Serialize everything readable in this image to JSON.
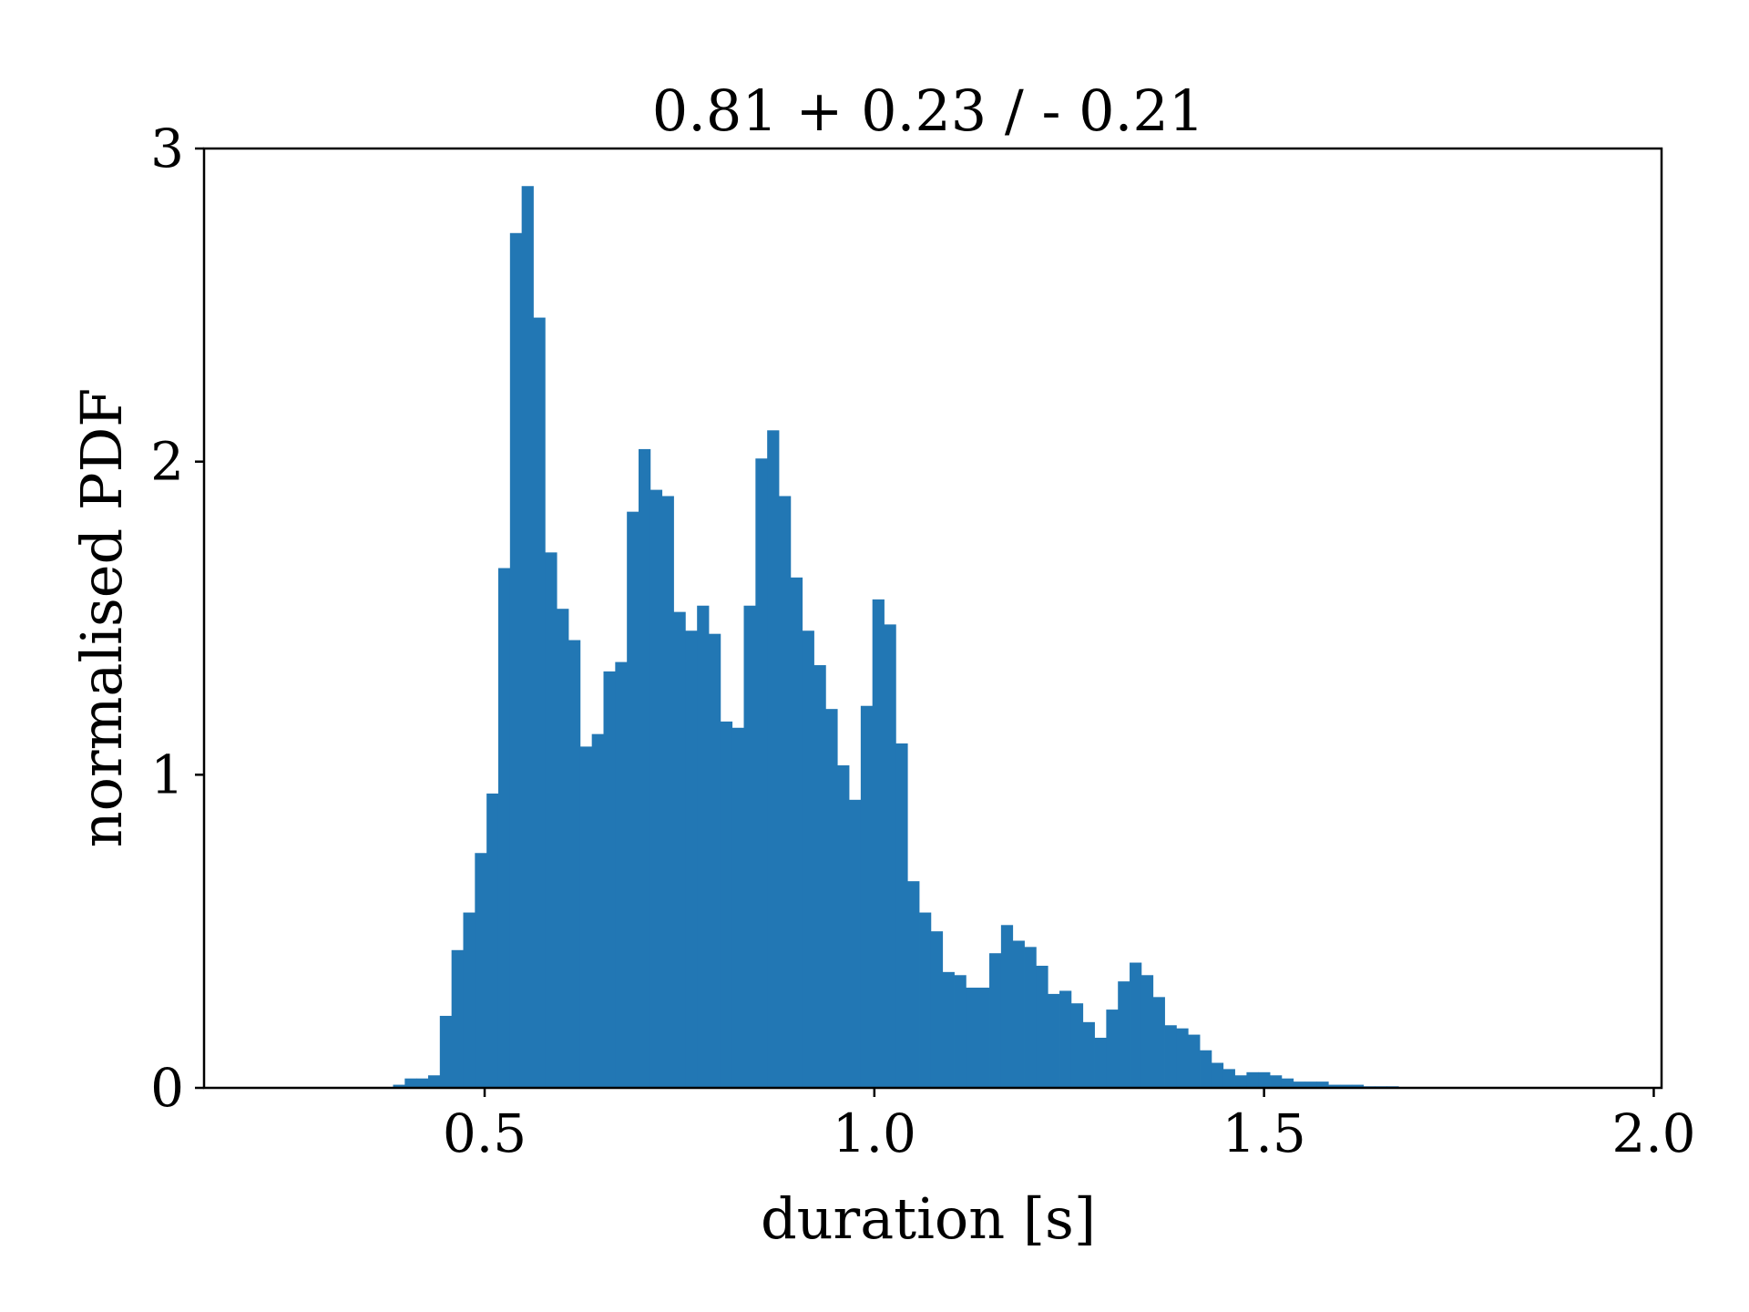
{
  "chart_data": {
    "type": "bar",
    "title": "0.81 + 0.23 / - 0.21",
    "xlabel": "duration [s]",
    "ylabel": "normalised PDF",
    "xlim": [
      0.14,
      2.01
    ],
    "ylim": [
      0,
      3
    ],
    "xticks": [
      "0.5",
      "1.0",
      "1.5",
      "2.0"
    ],
    "xtick_values": [
      0.5,
      1.0,
      1.5,
      2.0
    ],
    "yticks": [
      "0",
      "1",
      "2",
      "3"
    ],
    "ytick_values": [
      0,
      1,
      2,
      3
    ],
    "grid": false,
    "bar_color": "#2277b4",
    "bins": [
      [
        0.375,
        0.0
      ],
      [
        0.39,
        0.01
      ],
      [
        0.405,
        0.03
      ],
      [
        0.42,
        0.03
      ],
      [
        0.435,
        0.04
      ],
      [
        0.45,
        0.23
      ],
      [
        0.465,
        0.44
      ],
      [
        0.48,
        0.56
      ],
      [
        0.495,
        0.75
      ],
      [
        0.51,
        0.94
      ],
      [
        0.525,
        1.66
      ],
      [
        0.54,
        2.73
      ],
      [
        0.555,
        2.88
      ],
      [
        0.57,
        2.46
      ],
      [
        0.585,
        1.71
      ],
      [
        0.6,
        1.53
      ],
      [
        0.615,
        1.43
      ],
      [
        0.63,
        1.09
      ],
      [
        0.645,
        1.13
      ],
      [
        0.66,
        1.33
      ],
      [
        0.675,
        1.36
      ],
      [
        0.69,
        1.84
      ],
      [
        0.705,
        2.04
      ],
      [
        0.72,
        1.91
      ],
      [
        0.735,
        1.89
      ],
      [
        0.75,
        1.52
      ],
      [
        0.765,
        1.46
      ],
      [
        0.78,
        1.54
      ],
      [
        0.795,
        1.45
      ],
      [
        0.81,
        1.17
      ],
      [
        0.825,
        1.15
      ],
      [
        0.84,
        1.54
      ],
      [
        0.855,
        2.01
      ],
      [
        0.87,
        2.1
      ],
      [
        0.885,
        1.89
      ],
      [
        0.9,
        1.63
      ],
      [
        0.915,
        1.46
      ],
      [
        0.93,
        1.35
      ],
      [
        0.945,
        1.21
      ],
      [
        0.96,
        1.03
      ],
      [
        0.975,
        0.92
      ],
      [
        0.99,
        1.22
      ],
      [
        1.005,
        1.56
      ],
      [
        1.02,
        1.48
      ],
      [
        1.035,
        1.1
      ],
      [
        1.05,
        0.66
      ],
      [
        1.065,
        0.56
      ],
      [
        1.08,
        0.5
      ],
      [
        1.095,
        0.37
      ],
      [
        1.11,
        0.36
      ],
      [
        1.125,
        0.32
      ],
      [
        1.14,
        0.32
      ],
      [
        1.155,
        0.43
      ],
      [
        1.17,
        0.52
      ],
      [
        1.185,
        0.47
      ],
      [
        1.2,
        0.45
      ],
      [
        1.215,
        0.39
      ],
      [
        1.23,
        0.3
      ],
      [
        1.245,
        0.31
      ],
      [
        1.26,
        0.27
      ],
      [
        1.275,
        0.21
      ],
      [
        1.29,
        0.16
      ],
      [
        1.305,
        0.25
      ],
      [
        1.32,
        0.34
      ],
      [
        1.335,
        0.4
      ],
      [
        1.35,
        0.36
      ],
      [
        1.365,
        0.29
      ],
      [
        1.38,
        0.2
      ],
      [
        1.395,
        0.19
      ],
      [
        1.41,
        0.17
      ],
      [
        1.425,
        0.12
      ],
      [
        1.44,
        0.08
      ],
      [
        1.455,
        0.06
      ],
      [
        1.47,
        0.04
      ],
      [
        1.485,
        0.05
      ],
      [
        1.5,
        0.05
      ],
      [
        1.515,
        0.04
      ],
      [
        1.53,
        0.03
      ],
      [
        1.545,
        0.02
      ],
      [
        1.56,
        0.02
      ],
      [
        1.575,
        0.02
      ],
      [
        1.59,
        0.01
      ],
      [
        1.605,
        0.01
      ],
      [
        1.62,
        0.01
      ],
      [
        1.635,
        0.005
      ],
      [
        1.65,
        0.005
      ],
      [
        1.665,
        0.005
      ]
    ],
    "bin_width": 0.015
  }
}
